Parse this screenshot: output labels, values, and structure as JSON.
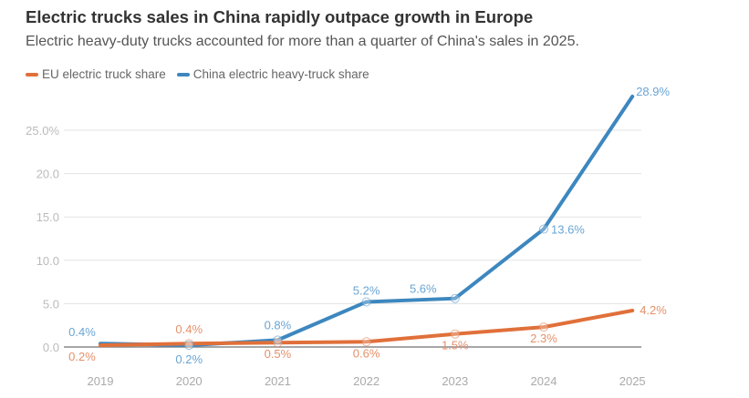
{
  "chart_data": {
    "type": "line",
    "title": "Electric trucks sales in China rapidly outpace growth in Europe",
    "subtitle": "Electric heavy-duty trucks accounted for more than a quarter of China's sales in 2025.",
    "x": [
      "2019",
      "2020",
      "2021",
      "2022",
      "2023",
      "2024",
      "2025"
    ],
    "ylim": [
      0,
      28.9
    ],
    "yticks": [
      0,
      5,
      10,
      15,
      20,
      25
    ],
    "ytick_labels": [
      "0.0",
      "5.0",
      "10.0",
      "15.0",
      "20.0",
      "25.0%"
    ],
    "grid": true,
    "legend_placement": "top-left",
    "series": [
      {
        "name": "EU electric truck share",
        "color": "#e0703a",
        "label_color": "#e4916a",
        "values": [
          0.2,
          0.4,
          0.5,
          0.6,
          1.5,
          2.3,
          4.2
        ],
        "labels": [
          "0.2%",
          "0.4%",
          "0.5%",
          "0.6%",
          "1.5%",
          "2.3%",
          "4.2%"
        ]
      },
      {
        "name": "China electric heavy-truck share",
        "color": "#3d87bf",
        "label_color": "#6aa5d4",
        "values": [
          0.4,
          0.2,
          0.8,
          5.2,
          5.6,
          13.6,
          28.9
        ],
        "labels": [
          "0.4%",
          "0.2%",
          "0.8%",
          "5.2%",
          "5.6%",
          "13.6%",
          "28.9%"
        ]
      }
    ]
  }
}
